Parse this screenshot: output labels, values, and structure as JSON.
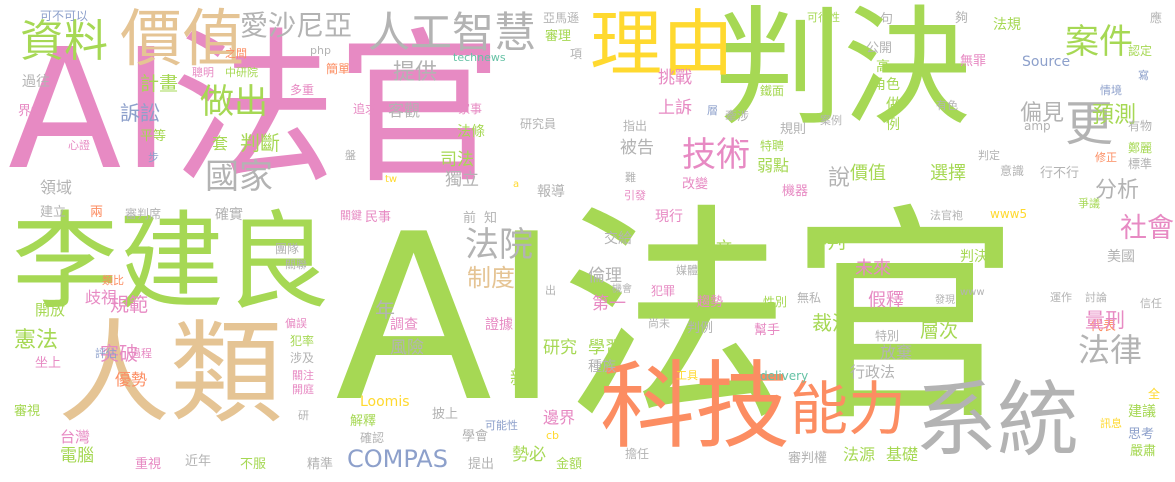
{
  "words": [
    {
      "id": "ai-fa-guan-pink",
      "text": "AI法官",
      "color": "pink"
    },
    {
      "id": "ai-fa-guan-green",
      "text": "AI法官",
      "color": "green"
    },
    {
      "id": "pan-jue",
      "text": "判決",
      "color": "green"
    },
    {
      "id": "li-jian-liang",
      "text": "李建良",
      "color": "green"
    },
    {
      "id": "ren-lei",
      "text": "人類",
      "color": "tan"
    },
    {
      "id": "ke-ji",
      "text": "科技",
      "color": "orange"
    },
    {
      "id": "xi-tong",
      "text": "系統",
      "color": "gray"
    },
    {
      "id": "li-you",
      "text": "理由",
      "color": "yellow"
    },
    {
      "id": "jia-zhi-large",
      "text": "價值",
      "color": "tan"
    },
    {
      "id": "neng-li",
      "text": "能力",
      "color": "orange"
    },
    {
      "id": "ren-gong-zhi-hui",
      "text": "人工智慧",
      "color": "gray"
    },
    {
      "id": "zi-liao",
      "text": "資料",
      "color": "green"
    },
    {
      "id": "ai-sha-ni-ya",
      "text": "愛沙尼亞",
      "color": "gray"
    },
    {
      "id": "an-jian",
      "text": "案件",
      "color": "green"
    },
    {
      "id": "geng",
      "text": "更",
      "color": "gray"
    },
    {
      "id": "zuo-chu",
      "text": "做出",
      "color": "green"
    },
    {
      "id": "guo-jia",
      "text": "國家",
      "color": "gray"
    },
    {
      "id": "ji-shu",
      "text": "技術",
      "color": "pink"
    },
    {
      "id": "fa-yuan",
      "text": "法院",
      "color": "gray"
    },
    {
      "id": "she-hui",
      "text": "社會",
      "color": "pink"
    },
    {
      "id": "fa-lu",
      "text": "法律",
      "color": "gray"
    },
    {
      "id": "compas",
      "text": "COMPAS",
      "color": "blue"
    },
    {
      "id": "yu-ce",
      "text": "預測",
      "color": "green"
    },
    {
      "id": "fen-xi",
      "text": "分析",
      "color": "gray"
    },
    {
      "id": "shuo",
      "text": "說",
      "color": "gray"
    },
    {
      "id": "pian-jian",
      "text": "偏見",
      "color": "gray"
    },
    {
      "id": "ti-gong",
      "text": "提供",
      "color": "gray"
    },
    {
      "id": "ji-hua",
      "text": "計畫",
      "color": "green"
    },
    {
      "id": "su-song",
      "text": "訴訟",
      "color": "blue"
    },
    {
      "id": "ping-deng",
      "text": "平等",
      "color": "green"
    },
    {
      "id": "xin-xin",
      "text": "心證",
      "color": "pink"
    },
    {
      "id": "bu",
      "text": "步",
      "color": "blue"
    },
    {
      "id": "ling-yu",
      "text": "領域",
      "color": "gray"
    },
    {
      "id": "liang",
      "text": "兩",
      "color": "orange"
    },
    {
      "id": "shen-pan-xi",
      "text": "審判席",
      "color": "gray"
    },
    {
      "id": "jian-li",
      "text": "建立",
      "color": "gray"
    },
    {
      "id": "lei-bi",
      "text": "類比",
      "color": "orange"
    },
    {
      "id": "qi-shi",
      "text": "歧視",
      "color": "pink"
    },
    {
      "id": "kai-fang",
      "text": "開放",
      "color": "green"
    },
    {
      "id": "gui-fan",
      "text": "規範",
      "color": "pink"
    },
    {
      "id": "xian-fa",
      "text": "憲法",
      "color": "green"
    },
    {
      "id": "tu-po",
      "text": "突破",
      "color": "pink"
    },
    {
      "id": "you-shi",
      "text": "優勢",
      "color": "orange"
    },
    {
      "id": "ping-gu",
      "text": "評估",
      "color": "blue"
    },
    {
      "id": "guo-cheng",
      "text": "過程",
      "color": "pink"
    },
    {
      "id": "zuo-shang",
      "text": "坐上",
      "color": "pink"
    },
    {
      "id": "shen-shi",
      "text": "審視",
      "color": "green"
    },
    {
      "id": "tai-wan",
      "text": "台灣",
      "color": "pink"
    },
    {
      "id": "dian-nao",
      "text": "電腦",
      "color": "green"
    },
    {
      "id": "zhong-shi",
      "text": "重視",
      "color": "pink"
    },
    {
      "id": "jin-nian",
      "text": "近年",
      "color": "gray"
    },
    {
      "id": "bu-fu",
      "text": "不服",
      "color": "green"
    },
    {
      "id": "jing-zhun",
      "text": "精準",
      "color": "gray"
    },
    {
      "id": "ti-chu",
      "text": "提出",
      "color": "gray"
    },
    {
      "id": "shi-bi",
      "text": "勢必",
      "color": "green"
    },
    {
      "id": "jin-e",
      "text": "金額",
      "color": "green"
    },
    {
      "id": "dan-ren",
      "text": "擔任",
      "color": "gray"
    },
    {
      "id": "shen-pan-quan",
      "text": "審判權",
      "color": "gray"
    },
    {
      "id": "fa-yuan-source",
      "text": "法源",
      "color": "green"
    },
    {
      "id": "ji-chu",
      "text": "基礎",
      "color": "green"
    },
    {
      "id": "yan-su",
      "text": "嚴肅",
      "color": "green"
    },
    {
      "id": "si-kao",
      "text": "思考",
      "color": "blue"
    },
    {
      "id": "jian-yi",
      "text": "建議",
      "color": "green"
    },
    {
      "id": "quan",
      "text": "全",
      "color": "yellow"
    },
    {
      "id": "xun-xi",
      "text": "訊息",
      "color": "yellow"
    },
    {
      "id": "ying",
      "text": "應",
      "color": "gray"
    },
    {
      "id": "ren-ding",
      "text": "認定",
      "color": "green"
    },
    {
      "id": "xie",
      "text": "寫",
      "color": "blue"
    },
    {
      "id": "gou",
      "text": "夠",
      "color": "gray"
    },
    {
      "id": "ju",
      "text": "句",
      "color": "gray"
    },
    {
      "id": "ke-xing-xing",
      "text": "可行性",
      "color": "green"
    },
    {
      "id": "fa-gui",
      "text": "法規",
      "color": "green"
    },
    {
      "id": "wu-zui",
      "text": "無罪",
      "color": "pink"
    },
    {
      "id": "gong-kai",
      "text": "公開",
      "color": "gray"
    },
    {
      "id": "gao",
      "text": "高",
      "color": "green"
    },
    {
      "id": "jiao-se",
      "text": "角色",
      "color": "green"
    },
    {
      "id": "source",
      "text": "Source",
      "color": "blue"
    },
    {
      "id": "zuo",
      "text": "做",
      "color": "green"
    },
    {
      "id": "lie",
      "text": "例",
      "color": "green"
    },
    {
      "id": "qing-jing",
      "text": "情境",
      "color": "blue"
    },
    {
      "id": "you-se",
      "text": "有色",
      "color": "gray"
    },
    {
      "id": "amp",
      "text": "amp",
      "color": "gray"
    },
    {
      "id": "you-wu",
      "text": "有物",
      "color": "gray"
    },
    {
      "id": "zheng-li",
      "text": "鄭麗",
      "color": "green"
    },
    {
      "id": "biao-zhun",
      "text": "標準",
      "color": "gray"
    },
    {
      "id": "xiu-zheng",
      "text": "修正",
      "color": "orange"
    },
    {
      "id": "yi-shi",
      "text": "意識",
      "color": "gray"
    },
    {
      "id": "xing-bu-xing",
      "text": "行不行",
      "color": "gray"
    },
    {
      "id": "pan-ding",
      "text": "判定",
      "color": "gray"
    },
    {
      "id": "zheng-yi",
      "text": "爭議",
      "color": "green"
    },
    {
      "id": "fa-guan-pao",
      "text": "法官袍",
      "color": "gray"
    },
    {
      "id": "www5",
      "text": "www5",
      "color": "yellow"
    },
    {
      "id": "pan-jue-shu",
      "text": "判決書",
      "color": "green"
    },
    {
      "id": "mei-guo",
      "text": "美國",
      "color": "gray"
    },
    {
      "id": "www",
      "text": "www",
      "color": "gray"
    },
    {
      "id": "fa-xian",
      "text": "發現",
      "color": "gray"
    },
    {
      "id": "yun-zuo",
      "text": "運作",
      "color": "gray"
    },
    {
      "id": "tao-lun",
      "text": "討論",
      "color": "gray"
    },
    {
      "id": "xin-ren",
      "text": "信任",
      "color": "gray"
    },
    {
      "id": "dai-biao",
      "text": "代表",
      "color": "orange"
    },
    {
      "id": "jia-shi",
      "text": "假釋",
      "color": "pink"
    },
    {
      "id": "liang-xing",
      "text": "量刑",
      "color": "pink"
    },
    {
      "id": "ceng-ci",
      "text": "層次",
      "color": "green"
    },
    {
      "id": "te-bie",
      "text": "特別",
      "color": "gray"
    },
    {
      "id": "fang-qi",
      "text": "放棄",
      "color": "gray"
    },
    {
      "id": "xing-zheng-fa",
      "text": "行政法",
      "color": "gray"
    },
    {
      "id": "delivery",
      "text": "delivery",
      "color": "teal"
    },
    {
      "id": "gong-ju",
      "text": "工具",
      "color": "yellow"
    },
    {
      "id": "bang-shou",
      "text": "幫手",
      "color": "pink"
    },
    {
      "id": "pan-li",
      "text": "判例",
      "color": "gray"
    },
    {
      "id": "shang-wei",
      "text": "尚未",
      "color": "gray"
    },
    {
      "id": "fan-zui",
      "text": "犯罪",
      "color": "pink"
    },
    {
      "id": "ji-hui",
      "text": "機會",
      "color": "gray"
    },
    {
      "id": "qu-shi",
      "text": "趨勢",
      "color": "pink"
    },
    {
      "id": "xing-bie",
      "text": "性別",
      "color": "green"
    },
    {
      "id": "wu-si",
      "text": "無私",
      "color": "gray"
    },
    {
      "id": "cai-jue",
      "text": "裁決",
      "color": "green"
    },
    {
      "id": "wei-lai",
      "text": "未來",
      "color": "pink"
    },
    {
      "id": "shen-pan",
      "text": "審判",
      "color": "green"
    },
    {
      "id": "ren-wen",
      "text": "人文",
      "color": "green"
    },
    {
      "id": "lun-li",
      "text": "倫理",
      "color": "gray"
    },
    {
      "id": "di-yi",
      "text": "第一",
      "color": "pink"
    },
    {
      "id": "xue-xi",
      "text": "學習",
      "color": "green"
    },
    {
      "id": "zhong-zu",
      "text": "種族",
      "color": "gray"
    },
    {
      "id": "mei-ti",
      "text": "媒體",
      "color": "gray"
    },
    {
      "id": "xian-xing",
      "text": "現行",
      "color": "pink"
    },
    {
      "id": "jiao-gei",
      "text": "交給",
      "color": "gray"
    },
    {
      "id": "bian-jie",
      "text": "邊界",
      "color": "pink"
    },
    {
      "id": "cb",
      "text": "cb",
      "color": "yellow"
    },
    {
      "id": "xue-hui",
      "text": "學會",
      "color": "gray"
    },
    {
      "id": "yan-jiu",
      "text": "研究",
      "color": "green"
    },
    {
      "id": "xin",
      "text": "新",
      "color": "green"
    },
    {
      "id": "ke-neng-xing",
      "text": "可能性",
      "color": "blue"
    },
    {
      "id": "zheng-ju",
      "text": "證據",
      "color": "pink"
    },
    {
      "id": "pi-shang",
      "text": "披上",
      "color": "gray"
    },
    {
      "id": "jie-shi",
      "text": "解釋",
      "color": "green"
    },
    {
      "id": "que-ren",
      "text": "確認",
      "color": "gray"
    },
    {
      "id": "loomis",
      "text": "Loomis",
      "color": "yellow"
    },
    {
      "id": "feng-xian",
      "text": "風險",
      "color": "gray"
    },
    {
      "id": "tiao-cha",
      "text": "調查",
      "color": "pink"
    },
    {
      "id": "zhi-du",
      "text": "制度",
      "color": "tan"
    },
    {
      "id": "nian",
      "text": "年",
      "color": "gray"
    },
    {
      "id": "chu",
      "text": "出",
      "color": "gray"
    },
    {
      "id": "fan-lv",
      "text": "犯率",
      "color": "green"
    },
    {
      "id": "she-ji",
      "text": "涉及",
      "color": "gray"
    },
    {
      "id": "guan-zhu",
      "text": "關注",
      "color": "pink"
    },
    {
      "id": "kai-ting",
      "text": "開庭",
      "color": "pink"
    },
    {
      "id": "yan",
      "text": "研",
      "color": "gray"
    },
    {
      "id": "pian-wu",
      "text": "偏誤",
      "color": "pink"
    },
    {
      "id": "tuan-dui",
      "text": "團隊",
      "color": "gray"
    },
    {
      "id": "guan-lian",
      "text": "關聯",
      "color": "gray"
    },
    {
      "id": "que-shi",
      "text": "確實",
      "color": "gray"
    },
    {
      "id": "min-shi",
      "text": "民事",
      "color": "pink"
    },
    {
      "id": "guan-jian",
      "text": "關鍵",
      "color": "pink"
    },
    {
      "id": "qian",
      "text": "前",
      "color": "gray"
    },
    {
      "id": "zhi",
      "text": "知",
      "color": "gray"
    },
    {
      "id": "bao-dao",
      "text": "報導",
      "color": "gray"
    },
    {
      "id": "du-li",
      "text": "獨立",
      "color": "gray"
    },
    {
      "id": "si-fa",
      "text": "司法",
      "color": "green"
    },
    {
      "id": "bei-gao",
      "text": "被告",
      "color": "gray"
    },
    {
      "id": "tw",
      "text": "tw",
      "color": "yellow"
    },
    {
      "id": "a",
      "text": "a",
      "color": "yellow"
    },
    {
      "id": "yan-jiu-yuan",
      "text": "研究員",
      "color": "gray"
    },
    {
      "id": "fa-tiao",
      "text": "法條",
      "color": "green"
    },
    {
      "id": "jia-shi-dup",
      "text": "家事",
      "color": "pink"
    },
    {
      "id": "zhui-qiu",
      "text": "追求",
      "color": "pink"
    },
    {
      "id": "pan",
      "text": "盤",
      "color": "gray"
    },
    {
      "id": "ke-guan",
      "text": "客觀",
      "color": "gray"
    },
    {
      "id": "tiao-zhan",
      "text": "挑戰",
      "color": "pink"
    },
    {
      "id": "shang-su",
      "text": "上訴",
      "color": "pink"
    },
    {
      "id": "tao",
      "text": "套",
      "color": "green"
    },
    {
      "id": "pan-duan",
      "text": "判斷",
      "color": "green"
    },
    {
      "id": "jia-zhi-small",
      "text": "價值",
      "color": "green"
    },
    {
      "id": "xuan-ze",
      "text": "選擇",
      "color": "green"
    },
    {
      "id": "ruo-dian",
      "text": "弱點",
      "color": "green"
    },
    {
      "id": "ji-qi",
      "text": "機器",
      "color": "pink"
    },
    {
      "id": "te-pin",
      "text": "特聘",
      "color": "green"
    },
    {
      "id": "nan",
      "text": "難",
      "color": "gray"
    },
    {
      "id": "yin-fa",
      "text": "引發",
      "color": "pink"
    },
    {
      "id": "gai-bian",
      "text": "改變",
      "color": "pink"
    },
    {
      "id": "gui-ze",
      "text": "規則",
      "color": "gray"
    },
    {
      "id": "an-li",
      "text": "案例",
      "color": "gray"
    },
    {
      "id": "zhi-chu",
      "text": "指出",
      "color": "gray"
    },
    {
      "id": "qian-she",
      "text": "牽涉",
      "color": "gray"
    },
    {
      "id": "ceng",
      "text": "層",
      "color": "blue"
    },
    {
      "id": "jian-mian",
      "text": "鐵面",
      "color": "green"
    },
    {
      "id": "ya-ma-xun",
      "text": "亞馬遜",
      "color": "gray"
    },
    {
      "id": "shen-li",
      "text": "審理",
      "color": "green"
    },
    {
      "id": "xiang",
      "text": "項",
      "color": "gray"
    },
    {
      "id": "technews",
      "text": "technews",
      "color": "teal"
    },
    {
      "id": "jian-dan",
      "text": "簡單",
      "color": "orange"
    },
    {
      "id": "duo-zhong",
      "text": "多重",
      "color": "pink"
    },
    {
      "id": "php",
      "text": "php",
      "color": "gray"
    },
    {
      "id": "zhi-jian",
      "text": "之間",
      "color": "orange"
    },
    {
      "id": "cong-ming",
      "text": "聰明",
      "color": "pink"
    },
    {
      "id": "zhong-yan-yuan",
      "text": "中研院",
      "color": "green"
    },
    {
      "id": "guo-wang",
      "text": "過往",
      "color": "gray"
    },
    {
      "id": "jie-xian",
      "text": "界線",
      "color": "pink"
    },
    {
      "id": "ke-bu-ke-yi",
      "text": "可不可以",
      "color": "blue"
    }
  ]
}
